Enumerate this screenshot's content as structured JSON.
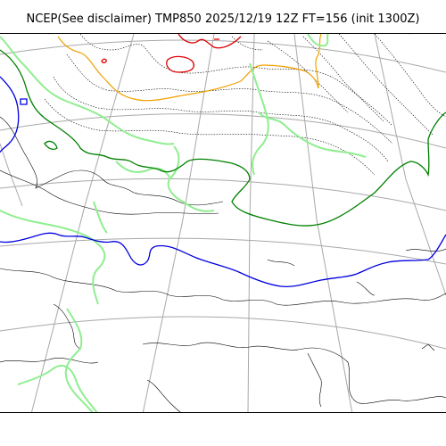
{
  "map": {
    "title": "NCEP(See disclaimer) TMP850 2025/12/19 12Z FT=156 (init 1300Z)",
    "colors": {
      "background": "#ffffff",
      "grid": "#a8a8a8",
      "coastline": "#000000",
      "isotherm_dotted": "#000000",
      "isotherm_red": "#e00000",
      "isotherm_orange": "#f0a000",
      "isotherm_light_green": "#90ee90",
      "isotherm_dark_green": "#008000",
      "isotherm_blue": "#0000e0"
    },
    "layers": [
      "graticule",
      "coastline",
      "isotherm-dotted",
      "isotherm-red",
      "isotherm-orange",
      "isotherm-light-green",
      "isotherm-dark-green",
      "isotherm-blue"
    ]
  }
}
